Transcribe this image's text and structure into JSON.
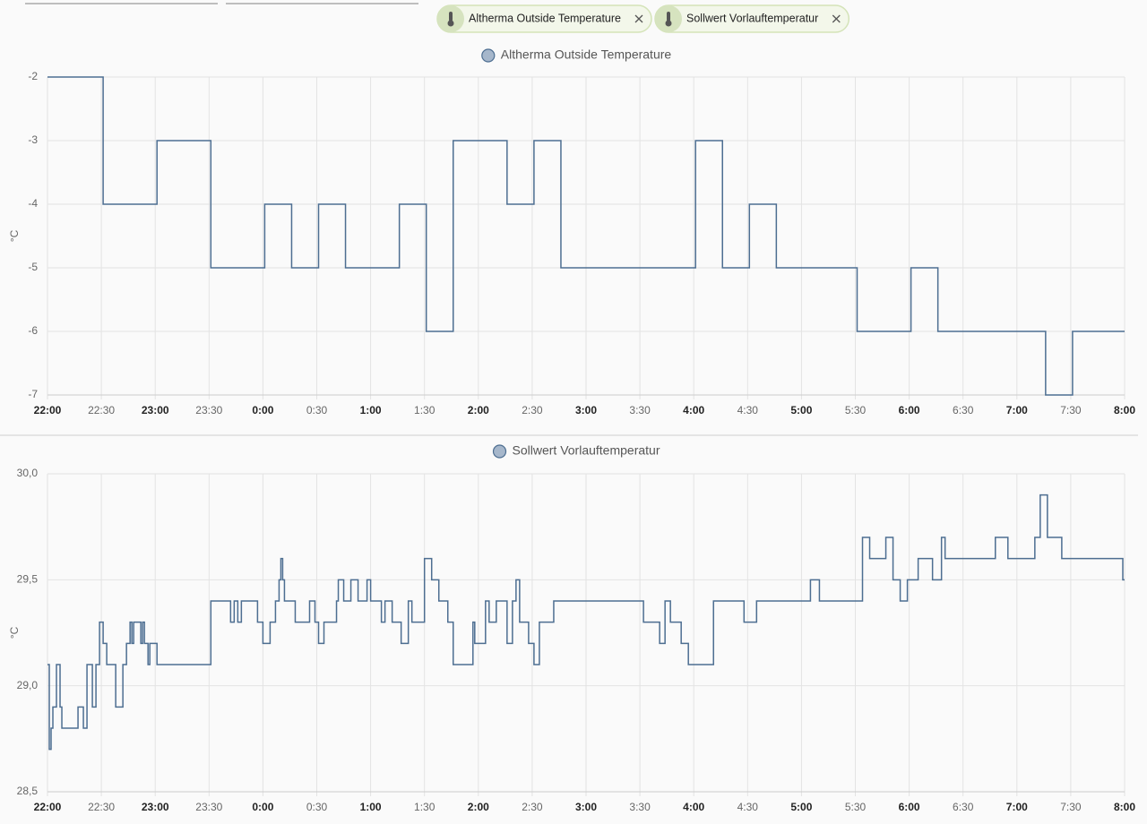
{
  "filters": [
    "Altherma Outside Temperature",
    "Sollwert Vorlauftemperatur"
  ],
  "chart_data": [
    {
      "type": "line",
      "step": true,
      "ylabel": "°C",
      "grid": true,
      "xlim": [
        "22:00",
        "8:00"
      ],
      "xticks": [
        "22:00",
        "22:30",
        "23:00",
        "23:30",
        "0:00",
        "0:30",
        "1:00",
        "1:30",
        "2:00",
        "2:30",
        "3:00",
        "3:30",
        "4:00",
        "4:30",
        "5:00",
        "5:30",
        "6:00",
        "6:30",
        "7:00",
        "7:30",
        "8:00"
      ],
      "ylim": [
        -7,
        -2
      ],
      "yticks": [
        -2,
        -3,
        -4,
        -5,
        -6,
        -7
      ],
      "x": [
        "22:00",
        "22:31",
        "23:01",
        "23:31",
        "0:01",
        "0:16",
        "0:31",
        "0:46",
        "1:16",
        "1:31",
        "1:46",
        "2:16",
        "2:31",
        "2:46",
        "4:01",
        "4:16",
        "4:31",
        "4:46",
        "5:31",
        "6:01",
        "6:16",
        "7:16",
        "7:31",
        "8:00"
      ],
      "series": [
        {
          "name": "Altherma Outside Temperature",
          "color": "#4d6e91",
          "values": [
            -2,
            -4,
            -3,
            -5,
            -4,
            -5,
            -4,
            -5,
            -4,
            -6,
            -3,
            -4,
            -3,
            -5,
            -3,
            -5,
            -4,
            -5,
            -6,
            -5,
            -6,
            -7,
            -6,
            -6
          ]
        }
      ]
    },
    {
      "type": "line",
      "step": true,
      "ylabel": "°C",
      "grid": true,
      "xlim": [
        "22:00",
        "8:00"
      ],
      "xticks": [
        "22:00",
        "22:30",
        "23:00",
        "23:30",
        "0:00",
        "0:30",
        "1:00",
        "1:30",
        "2:00",
        "2:30",
        "3:00",
        "3:30",
        "4:00",
        "4:30",
        "5:00",
        "5:30",
        "6:00",
        "6:30",
        "7:00",
        "7:30",
        "8:00"
      ],
      "ylim": [
        28.5,
        30
      ],
      "yticks": [
        {
          "value": 30,
          "label": "30,0"
        },
        {
          "value": 29.5,
          "label": "29,5"
        },
        {
          "value": 29,
          "label": "29,0"
        },
        {
          "value": 28.5,
          "label": "28,5"
        }
      ],
      "x": [
        "22:00",
        "22:01",
        "22:02",
        "22:03",
        "22:05",
        "22:07",
        "22:08",
        "22:17",
        "22:20",
        "22:22",
        "22:25",
        "22:27",
        "22:29",
        "22:31",
        "22:33",
        "22:38",
        "22:42",
        "22:44",
        "22:46",
        "22:47",
        "22:48",
        "22:52",
        "22:53",
        "22:54",
        "22:56",
        "22:57",
        "23:01",
        "23:31",
        "23:42",
        "23:44",
        "23:46",
        "23:48",
        "23:57",
        "0:00",
        "0:04",
        "0:07",
        "0:09",
        "0:10",
        "0:11",
        "0:12",
        "0:18",
        "0:26",
        "0:29",
        "0:31",
        "0:34",
        "0:41",
        "0:42",
        "0:45",
        "0:49",
        "0:53",
        "0:58",
        "1:00",
        "1:06",
        "1:08",
        "1:12",
        "1:17",
        "1:21",
        "1:23",
        "1:30",
        "1:34",
        "1:38",
        "1:43",
        "1:46",
        "1:57",
        "1:58",
        "2:04",
        "2:06",
        "2:10",
        "2:16",
        "2:19",
        "2:21",
        "2:23",
        "2:28",
        "2:31",
        "2:34",
        "2:42",
        "3:32",
        "3:41",
        "3:44",
        "3:47",
        "3:53",
        "3:57",
        "4:11",
        "4:28",
        "4:35",
        "5:05",
        "5:10",
        "5:34",
        "5:38",
        "5:47",
        "5:51",
        "5:55",
        "5:59",
        "6:05",
        "6:13",
        "6:18",
        "6:20",
        "6:48",
        "6:55",
        "7:10",
        "7:13",
        "7:17",
        "7:25",
        "7:59",
        "8:00"
      ],
      "series": [
        {
          "name": "Sollwert Vorlauftemperatur",
          "color": "#4d6e91",
          "values": [
            29.1,
            28.7,
            28.8,
            28.9,
            29.1,
            28.9,
            28.8,
            28.9,
            28.8,
            29.1,
            28.9,
            29.1,
            29.3,
            29.2,
            29.1,
            28.9,
            29.1,
            29.2,
            29.3,
            29.2,
            29.3,
            29.2,
            29.3,
            29.2,
            29.1,
            29.2,
            29.1,
            29.4,
            29.3,
            29.4,
            29.3,
            29.4,
            29.3,
            29.2,
            29.3,
            29.4,
            29.5,
            29.6,
            29.5,
            29.4,
            29.3,
            29.4,
            29.3,
            29.2,
            29.3,
            29.4,
            29.5,
            29.4,
            29.5,
            29.4,
            29.5,
            29.4,
            29.3,
            29.4,
            29.3,
            29.2,
            29.4,
            29.3,
            29.6,
            29.5,
            29.4,
            29.3,
            29.1,
            29.3,
            29.2,
            29.4,
            29.3,
            29.4,
            29.2,
            29.4,
            29.5,
            29.3,
            29.2,
            29.1,
            29.3,
            29.4,
            29.3,
            29.2,
            29.4,
            29.3,
            29.2,
            29.1,
            29.4,
            29.3,
            29.4,
            29.5,
            29.4,
            29.7,
            29.6,
            29.7,
            29.5,
            29.4,
            29.5,
            29.6,
            29.5,
            29.7,
            29.6,
            29.7,
            29.6,
            29.7,
            29.9,
            29.7,
            29.6,
            29.5,
            29.5
          ]
        }
      ]
    }
  ]
}
